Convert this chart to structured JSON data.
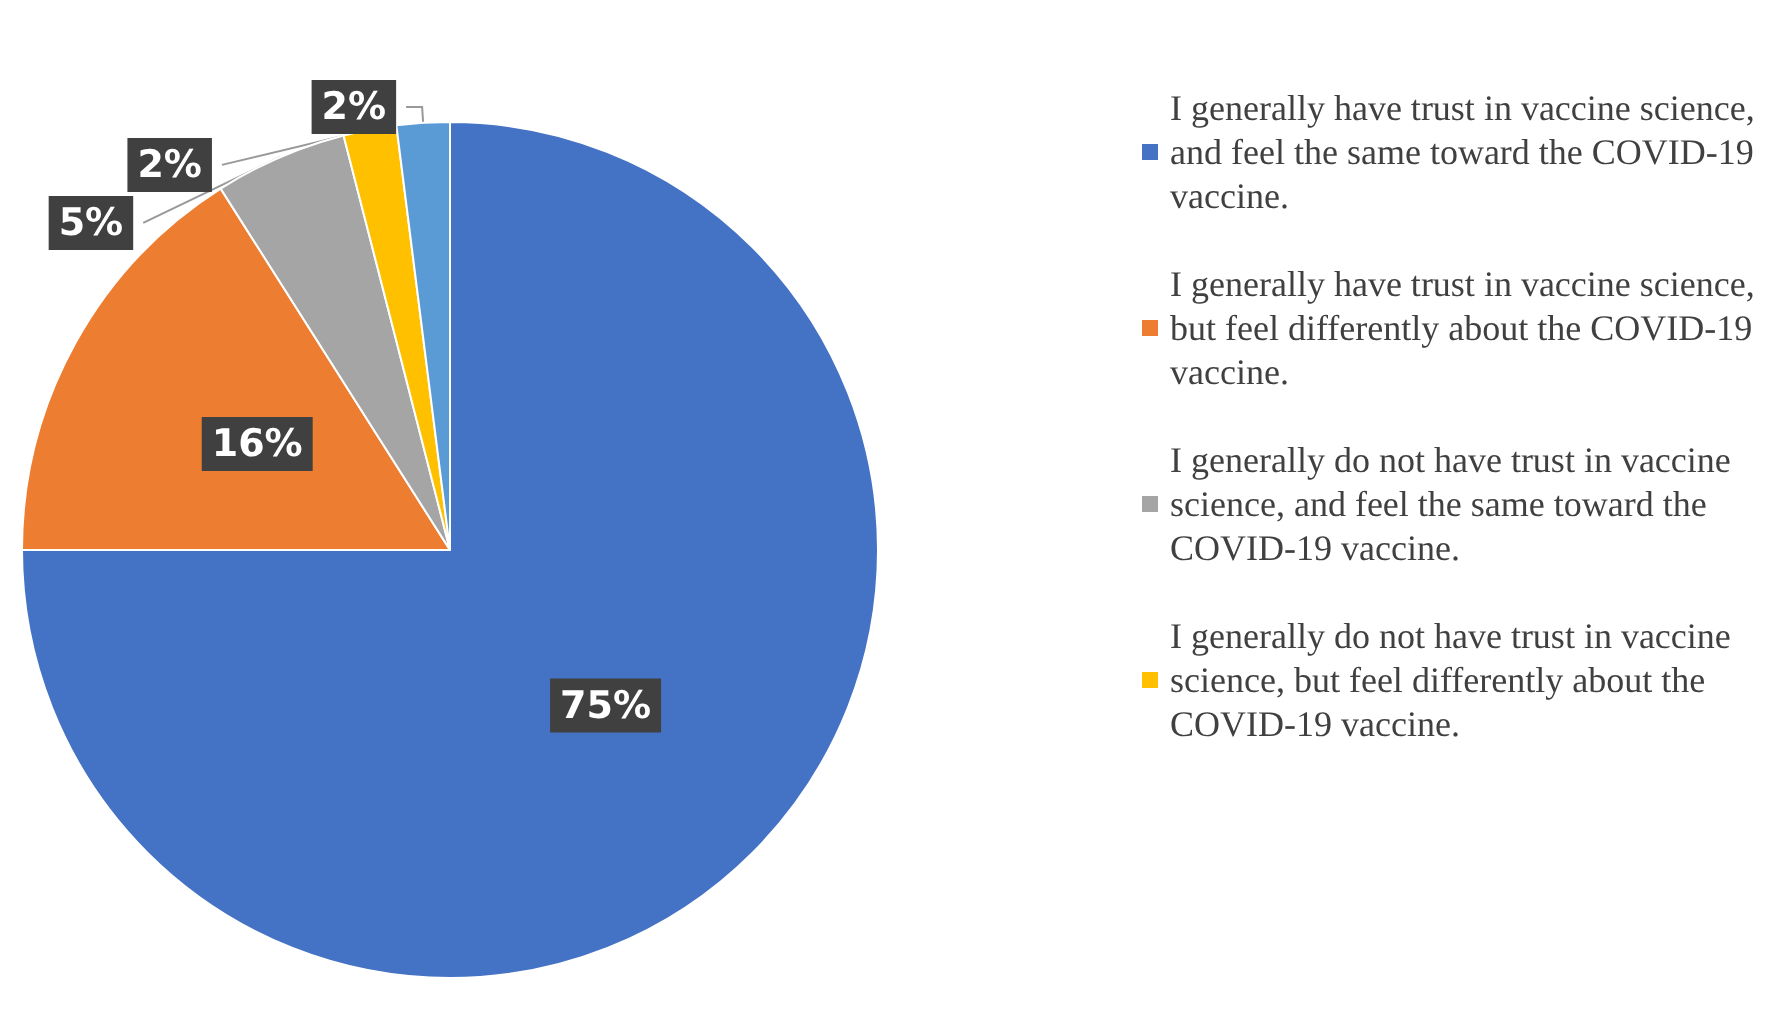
{
  "chart_data": {
    "type": "pie",
    "categories": [
      "I generally have trust in vaccine science, and feel the same toward the COVID-19 vaccine.",
      "I generally have trust in vaccine science, but feel differently about the COVID-19 vaccine.",
      "I generally do not have trust in vaccine science, and feel the same toward the COVID-19 vaccine.",
      "I generally do not have trust in vaccine science, but feel differently about the COVID-19 vaccine.",
      null
    ],
    "values": [
      75,
      16,
      5,
      2,
      2
    ],
    "colors": [
      "#4472c4",
      "#ed7d31",
      "#a5a5a5",
      "#ffc000",
      "#5b9bd5"
    ],
    "value_labels": [
      "75%",
      "16%",
      "5%",
      "2%",
      "2%"
    ],
    "legend": "right"
  }
}
